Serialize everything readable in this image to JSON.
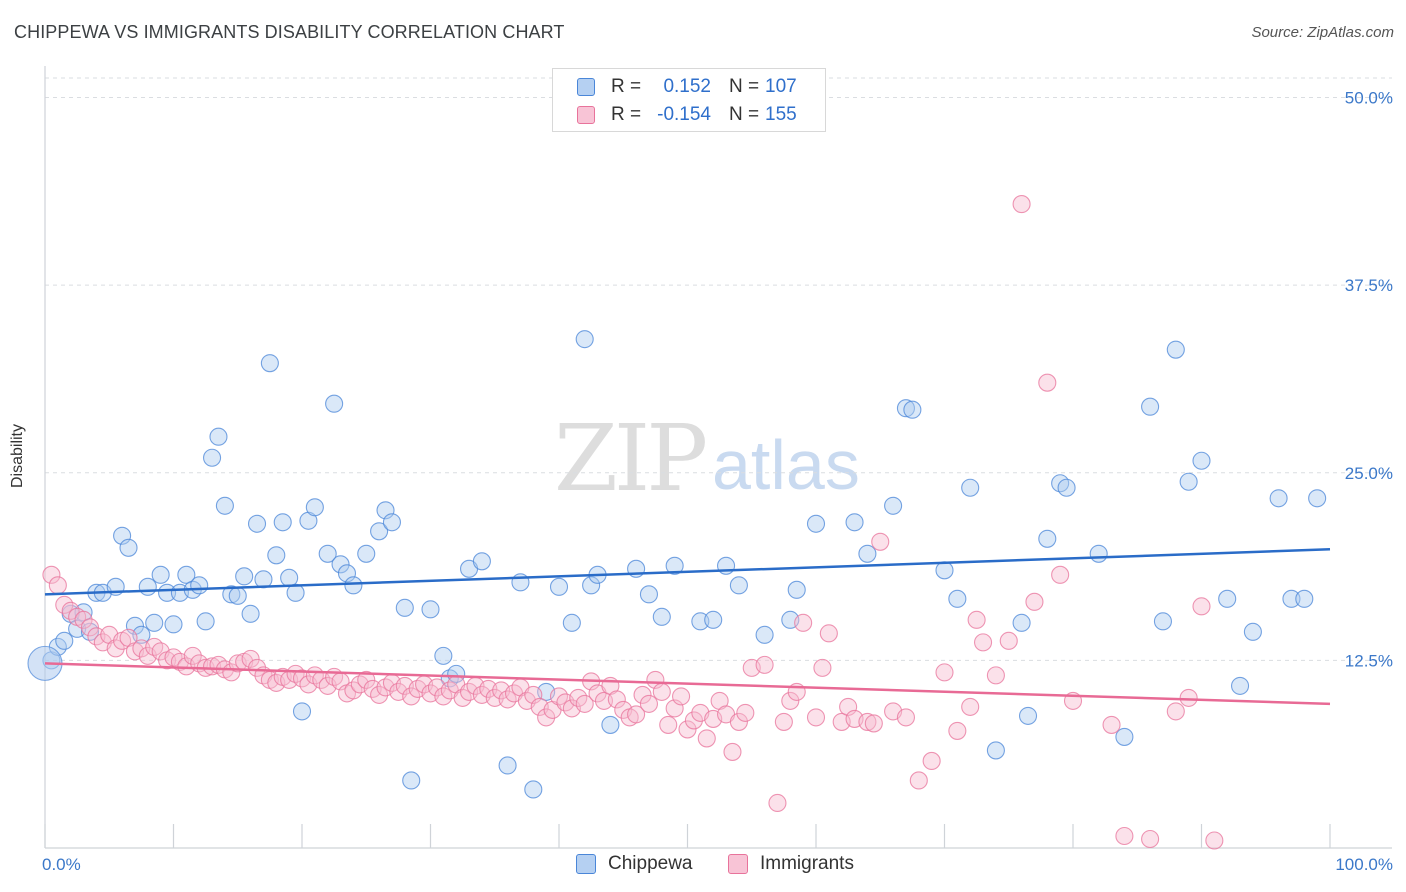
{
  "title": "CHIPPEWA VS IMMIGRANTS DISABILITY CORRELATION CHART",
  "source": "Source: ZipAtlas.com",
  "watermark": {
    "zip": "ZIP",
    "atlas": "atlas"
  },
  "colors": {
    "blue": "#4a86d8",
    "blue_fill": "#aecbef",
    "blue_line": "#2a6cc8",
    "pink": "#e8739b",
    "pink_fill": "#f6bcd0",
    "pink_line": "#e86a95",
    "tick": "#3b78c9",
    "grid": "#dadde1"
  },
  "legend": {
    "rows": [
      {
        "r_label": "R =",
        "r_value": "0.152",
        "n_label": "N =",
        "n_value": "107"
      },
      {
        "r_label": "R =",
        "r_value": "-0.154",
        "n_label": "N =",
        "n_value": "155"
      }
    ]
  },
  "bottom_legend": {
    "chippewa": "Chippewa",
    "immigrants": "Immigrants"
  },
  "chart_data": {
    "type": "scatter",
    "ylabel": "Disability",
    "xlim": [
      0,
      100
    ],
    "ylim": [
      0,
      50
    ],
    "x_tick_labels": [
      "0.0%",
      "100.0%"
    ],
    "y_ticks": [
      12.5,
      25.0,
      37.5,
      50.0
    ],
    "y_tick_labels": [
      "12.5%",
      "25.0%",
      "37.5%",
      "50.0%"
    ],
    "grid": true,
    "legend_position": "top-center",
    "series": [
      {
        "name": "Chippewa",
        "trend": [
          [
            0,
            16.9
          ],
          [
            100,
            19.9
          ]
        ],
        "points": [
          [
            0.5,
            12.5
          ],
          [
            1,
            13.4
          ],
          [
            1.5,
            13.8
          ],
          [
            2,
            15.6
          ],
          [
            2.5,
            14.6
          ],
          [
            3,
            15.7
          ],
          [
            3.5,
            14.4
          ],
          [
            4,
            17.0
          ],
          [
            4.5,
            17.0
          ],
          [
            5.5,
            17.4
          ],
          [
            6,
            20.8
          ],
          [
            6.5,
            20.0
          ],
          [
            7,
            14.8
          ],
          [
            7.5,
            14.2
          ],
          [
            8,
            17.4
          ],
          [
            8.5,
            15.0
          ],
          [
            9,
            18.2
          ],
          [
            9.5,
            17.0
          ],
          [
            10,
            14.9
          ],
          [
            10.5,
            17.0
          ],
          [
            11,
            18.2
          ],
          [
            11.5,
            17.2
          ],
          [
            12,
            17.5
          ],
          [
            12.5,
            15.1
          ],
          [
            13,
            26.0
          ],
          [
            13.5,
            27.4
          ],
          [
            14,
            22.8
          ],
          [
            14.5,
            16.9
          ],
          [
            15,
            16.8
          ],
          [
            15.5,
            18.1
          ],
          [
            16,
            15.6
          ],
          [
            16.5,
            21.6
          ],
          [
            17,
            17.9
          ],
          [
            17.5,
            32.3
          ],
          [
            18,
            19.5
          ],
          [
            18.5,
            21.7
          ],
          [
            19,
            18.0
          ],
          [
            19.5,
            17.0
          ],
          [
            20,
            9.1
          ],
          [
            20.5,
            21.8
          ],
          [
            21,
            22.7
          ],
          [
            22,
            19.6
          ],
          [
            22.5,
            29.6
          ],
          [
            23,
            18.9
          ],
          [
            23.5,
            18.3
          ],
          [
            24,
            17.5
          ],
          [
            25,
            19.6
          ],
          [
            26,
            21.1
          ],
          [
            26.5,
            22.5
          ],
          [
            27,
            21.7
          ],
          [
            28,
            16.0
          ],
          [
            28.5,
            4.5
          ],
          [
            30,
            15.9
          ],
          [
            31,
            12.8
          ],
          [
            31.5,
            11.3
          ],
          [
            32,
            11.6
          ],
          [
            33,
            18.6
          ],
          [
            34,
            19.1
          ],
          [
            36,
            5.5
          ],
          [
            37,
            17.7
          ],
          [
            38,
            3.9
          ],
          [
            39,
            10.4
          ],
          [
            40,
            17.4
          ],
          [
            41,
            15.0
          ],
          [
            42,
            33.9
          ],
          [
            42.5,
            17.5
          ],
          [
            43,
            18.2
          ],
          [
            44,
            8.2
          ],
          [
            46,
            18.6
          ],
          [
            47,
            16.9
          ],
          [
            48,
            15.4
          ],
          [
            49,
            18.8
          ],
          [
            51,
            15.1
          ],
          [
            52,
            15.2
          ],
          [
            53,
            18.8
          ],
          [
            54,
            17.5
          ],
          [
            56,
            14.2
          ],
          [
            58,
            15.2
          ],
          [
            58.5,
            17.2
          ],
          [
            60,
            21.6
          ],
          [
            63,
            21.7
          ],
          [
            64,
            19.6
          ],
          [
            66,
            22.8
          ],
          [
            67,
            29.3
          ],
          [
            67.5,
            29.2
          ],
          [
            70,
            18.5
          ],
          [
            71,
            16.6
          ],
          [
            72,
            24.0
          ],
          [
            74,
            6.5
          ],
          [
            76,
            15.0
          ],
          [
            76.5,
            8.8
          ],
          [
            78,
            20.6
          ],
          [
            79,
            24.3
          ],
          [
            79.5,
            24.0
          ],
          [
            82,
            19.6
          ],
          [
            84,
            7.4
          ],
          [
            86,
            29.4
          ],
          [
            87,
            15.1
          ],
          [
            88,
            33.2
          ],
          [
            89,
            24.4
          ],
          [
            90,
            25.8
          ],
          [
            92,
            16.6
          ],
          [
            93,
            10.8
          ],
          [
            94,
            14.4
          ],
          [
            96,
            23.3
          ],
          [
            97,
            16.6
          ],
          [
            98,
            16.6
          ],
          [
            99,
            23.3
          ]
        ]
      },
      {
        "name": "Immigrants",
        "trend": [
          [
            0,
            12.3
          ],
          [
            100,
            9.6
          ]
        ],
        "points": [
          [
            0.5,
            18.2
          ],
          [
            1,
            17.5
          ],
          [
            1.5,
            16.2
          ],
          [
            2,
            15.8
          ],
          [
            2.5,
            15.4
          ],
          [
            3,
            15.2
          ],
          [
            3.5,
            14.7
          ],
          [
            4,
            14.1
          ],
          [
            4.5,
            13.7
          ],
          [
            5,
            14.2
          ],
          [
            5.5,
            13.3
          ],
          [
            6,
            13.8
          ],
          [
            6.5,
            14.0
          ],
          [
            7,
            13.1
          ],
          [
            7.5,
            13.3
          ],
          [
            8,
            12.8
          ],
          [
            8.5,
            13.4
          ],
          [
            9,
            13.1
          ],
          [
            9.5,
            12.5
          ],
          [
            10,
            12.7
          ],
          [
            10.5,
            12.4
          ],
          [
            11,
            12.1
          ],
          [
            11.5,
            12.8
          ],
          [
            12,
            12.3
          ],
          [
            12.5,
            12.0
          ],
          [
            13,
            12.1
          ],
          [
            13.5,
            12.2
          ],
          [
            14,
            11.9
          ],
          [
            14.5,
            11.7
          ],
          [
            15,
            12.3
          ],
          [
            15.5,
            12.4
          ],
          [
            16,
            12.6
          ],
          [
            16.5,
            12.0
          ],
          [
            17,
            11.5
          ],
          [
            17.5,
            11.2
          ],
          [
            18,
            11.0
          ],
          [
            18.5,
            11.4
          ],
          [
            19,
            11.2
          ],
          [
            19.5,
            11.6
          ],
          [
            20,
            11.3
          ],
          [
            20.5,
            10.9
          ],
          [
            21,
            11.5
          ],
          [
            21.5,
            11.2
          ],
          [
            22,
            10.8
          ],
          [
            22.5,
            11.4
          ],
          [
            23,
            11.1
          ],
          [
            23.5,
            10.3
          ],
          [
            24,
            10.5
          ],
          [
            24.5,
            10.9
          ],
          [
            25,
            11.2
          ],
          [
            25.5,
            10.6
          ],
          [
            26,
            10.2
          ],
          [
            26.5,
            10.7
          ],
          [
            27,
            11.0
          ],
          [
            27.5,
            10.4
          ],
          [
            28,
            10.8
          ],
          [
            28.5,
            10.1
          ],
          [
            29,
            10.6
          ],
          [
            29.5,
            10.9
          ],
          [
            30,
            10.3
          ],
          [
            30.5,
            10.7
          ],
          [
            31,
            10.1
          ],
          [
            31.5,
            10.5
          ],
          [
            32,
            10.9
          ],
          [
            32.5,
            10.0
          ],
          [
            33,
            10.4
          ],
          [
            33.5,
            10.8
          ],
          [
            34,
            10.2
          ],
          [
            34.5,
            10.6
          ],
          [
            35,
            10.0
          ],
          [
            35.5,
            10.5
          ],
          [
            36,
            9.9
          ],
          [
            36.5,
            10.3
          ],
          [
            37,
            10.7
          ],
          [
            37.5,
            9.8
          ],
          [
            38,
            10.2
          ],
          [
            38.5,
            9.4
          ],
          [
            39,
            8.7
          ],
          [
            39.5,
            9.2
          ],
          [
            40,
            10.1
          ],
          [
            40.5,
            9.7
          ],
          [
            41,
            9.3
          ],
          [
            41.5,
            10.0
          ],
          [
            42,
            9.6
          ],
          [
            42.5,
            11.1
          ],
          [
            43,
            10.3
          ],
          [
            43.5,
            9.8
          ],
          [
            44,
            10.8
          ],
          [
            44.5,
            9.9
          ],
          [
            45,
            9.2
          ],
          [
            45.5,
            8.7
          ],
          [
            46,
            8.9
          ],
          [
            46.5,
            10.2
          ],
          [
            47,
            9.6
          ],
          [
            47.5,
            11.2
          ],
          [
            48,
            10.4
          ],
          [
            48.5,
            8.2
          ],
          [
            49,
            9.3
          ],
          [
            49.5,
            10.1
          ],
          [
            50,
            7.9
          ],
          [
            50.5,
            8.5
          ],
          [
            51,
            9.0
          ],
          [
            51.5,
            7.3
          ],
          [
            52,
            8.6
          ],
          [
            52.5,
            9.8
          ],
          [
            53,
            8.9
          ],
          [
            53.5,
            6.4
          ],
          [
            54,
            8.4
          ],
          [
            54.5,
            9.0
          ],
          [
            55,
            12.0
          ],
          [
            56,
            12.2
          ],
          [
            57,
            3.0
          ],
          [
            57.5,
            8.4
          ],
          [
            58,
            9.8
          ],
          [
            58.5,
            10.4
          ],
          [
            59,
            15.0
          ],
          [
            60,
            8.7
          ],
          [
            60.5,
            12.0
          ],
          [
            61,
            14.3
          ],
          [
            62,
            8.4
          ],
          [
            62.5,
            9.4
          ],
          [
            63,
            8.6
          ],
          [
            64,
            8.4
          ],
          [
            64.5,
            8.3
          ],
          [
            65,
            20.4
          ],
          [
            66,
            9.1
          ],
          [
            67,
            8.7
          ],
          [
            68,
            4.5
          ],
          [
            69,
            5.8
          ],
          [
            70,
            11.7
          ],
          [
            71,
            7.8
          ],
          [
            72,
            9.4
          ],
          [
            72.5,
            15.2
          ],
          [
            73,
            13.7
          ],
          [
            74,
            11.5
          ],
          [
            75,
            13.8
          ],
          [
            76,
            42.9
          ],
          [
            77,
            16.4
          ],
          [
            78,
            31.0
          ],
          [
            79,
            18.2
          ],
          [
            80,
            9.8
          ],
          [
            83,
            8.2
          ],
          [
            84,
            0.8
          ],
          [
            86,
            0.6
          ],
          [
            88,
            9.1
          ],
          [
            89,
            10.0
          ],
          [
            90,
            16.1
          ],
          [
            91,
            0.5
          ]
        ]
      }
    ]
  }
}
